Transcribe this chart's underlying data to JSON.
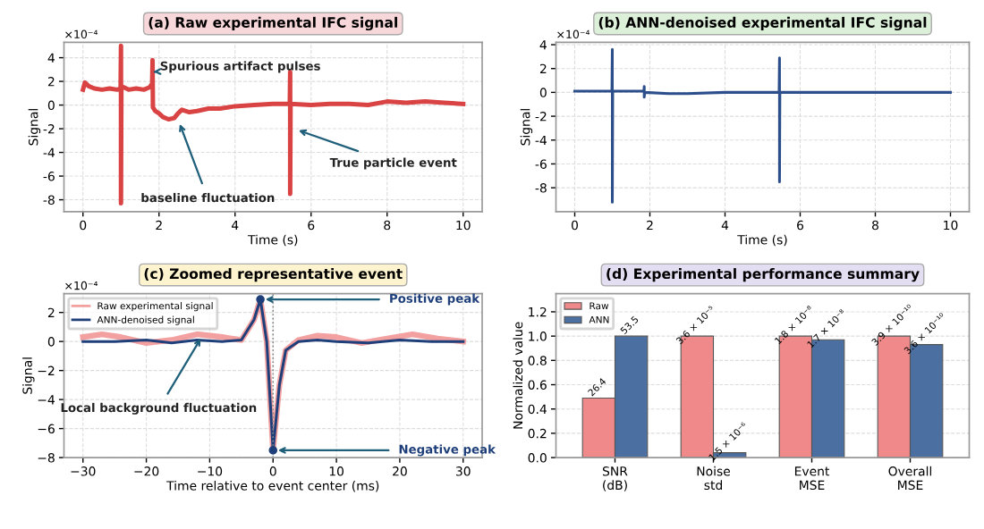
{
  "chart_data": [
    {
      "type": "line",
      "title": "(a) Raw experimental IFC signal",
      "xlabel": "Time (s)",
      "ylabel": "Signal",
      "series": [
        {
          "color": "#d94343",
          "x": [
            0,
            0.05,
            0.15,
            0.3,
            0.5,
            0.7,
            0.9,
            0.99,
            1.0,
            1.0,
            1.01,
            1.2,
            1.4,
            1.6,
            1.75,
            1.82,
            1.83,
            1.84,
            1.9,
            2.0,
            2.1,
            2.25,
            2.4,
            2.5,
            2.6,
            2.8,
            3.0,
            3.3,
            3.6,
            4.0,
            4.5,
            5.0,
            5.44,
            5.45,
            5.45,
            5.46,
            6.0,
            6.5,
            7.0,
            7.5,
            8.0,
            8.5,
            9.0,
            9.5,
            10.0
          ],
          "values": [
            1.3,
            1.9,
            1.6,
            1.4,
            1.3,
            1.4,
            1.3,
            1.4,
            5.0,
            -8.3,
            1.6,
            1.3,
            1.4,
            1.3,
            1.5,
            1.8,
            3.8,
            -0.2,
            -0.5,
            -0.7,
            -1.0,
            -1.2,
            -1.1,
            -0.7,
            -0.4,
            -0.6,
            -0.5,
            -0.3,
            -0.3,
            -0.1,
            0.0,
            0.1,
            0.1,
            2.8,
            -7.5,
            0.1,
            0.0,
            0.1,
            0.1,
            0.0,
            0.3,
            0.2,
            0.3,
            0.2,
            0.1
          ]
        }
      ],
      "xlim": [
        -0.5,
        10.5
      ],
      "xticks": [
        0,
        2,
        4,
        6,
        8,
        10
      ],
      "ylim": [
        -9,
        5.3
      ],
      "yticks": [
        -8,
        -6,
        -4,
        -2,
        0,
        2,
        4
      ],
      "grid": true,
      "annotations": [
        "×10⁻⁴",
        {
          "text": "Spurious artifact pulses",
          "x": 1.85,
          "y": 2.8
        },
        {
          "text": "baseline fluctuation",
          "x": 2.5,
          "y": -1.2
        },
        {
          "text": "True particle event",
          "x": 5.55,
          "y": -2
        }
      ]
    },
    {
      "type": "line",
      "title": "(b) ANN-denoised experimental IFC signal",
      "xlabel": "Time (s)",
      "ylabel": "Signal",
      "series": [
        {
          "color": "#2c4f8c",
          "x": [
            0,
            0.99,
            1.0,
            1.0,
            1.01,
            1.84,
            1.85,
            1.85,
            1.86,
            2.5,
            3.0,
            4.0,
            5.44,
            5.45,
            5.45,
            5.46,
            7.0,
            10.0
          ],
          "values": [
            0.1,
            0.1,
            3.6,
            -9.2,
            0.1,
            0.1,
            0.5,
            -0.4,
            0.0,
            -0.1,
            -0.1,
            0.0,
            0.0,
            2.9,
            -7.5,
            0.0,
            0.0,
            0.0
          ]
        }
      ],
      "xlim": [
        -0.5,
        10.5
      ],
      "xticks": [
        0,
        2,
        4,
        6,
        8,
        10
      ],
      "ylim": [
        -10,
        4.2
      ],
      "yticks": [
        -8,
        -6,
        -4,
        -2,
        0,
        2,
        4
      ],
      "grid": true,
      "annotations": [
        "×10⁻⁴"
      ]
    },
    {
      "type": "line",
      "title": "(c) Zoomed representative event",
      "xlabel": "Time relative to event center (ms)",
      "ylabel": "Signal",
      "series": [
        {
          "name": "Raw experimental signal",
          "color": "#f2a0a0",
          "x": [
            -30,
            -27,
            -24,
            -20,
            -16,
            -12,
            -8,
            -5,
            -3,
            -2,
            -1,
            0,
            1,
            2,
            4,
            7,
            10,
            14,
            18,
            22,
            26,
            30
          ],
          "values": [
            0.3,
            0.5,
            0.3,
            -0.1,
            0.1,
            0.5,
            0.3,
            0.1,
            1.5,
            2.9,
            0.0,
            -7.5,
            -3.0,
            -0.6,
            0.1,
            0.4,
            0.3,
            -0.1,
            0.2,
            0.5,
            0.2,
            0.0
          ]
        },
        {
          "name": "ANN-denoised signal",
          "color": "#1f3f7a",
          "x": [
            -30,
            -25,
            -20,
            -16,
            -12,
            -8,
            -5,
            -3,
            -2,
            -1,
            0,
            1,
            2,
            4,
            7,
            10,
            15,
            20,
            25,
            30
          ],
          "values": [
            0.0,
            0.0,
            0.1,
            -0.1,
            0.1,
            0.0,
            0.1,
            1.5,
            2.9,
            0.0,
            -7.5,
            -3.0,
            -0.6,
            0.0,
            0.1,
            0.0,
            -0.1,
            0.1,
            0.0,
            0.0
          ]
        },
        {
          "type": "scatter",
          "color": "#1f3f7a",
          "x": [
            -2,
            0
          ],
          "values": [
            2.9,
            -7.5
          ]
        }
      ],
      "xlim": [
        -33,
        33
      ],
      "xticks": [
        {
          "value": -30,
          "label": "−30"
        },
        {
          "value": -20,
          "label": "−20"
        },
        {
          "value": -10,
          "label": "−10"
        },
        0,
        10,
        20,
        30
      ],
      "ylim": [
        -8,
        3.3
      ],
      "yticks": [
        {
          "value": -8,
          "label": "−8"
        },
        {
          "value": -6,
          "label": "−6"
        },
        {
          "value": -4,
          "label": "−4"
        },
        {
          "value": -2,
          "label": "−2"
        },
        0,
        2
      ],
      "grid": true,
      "legend": "top left",
      "ref_lines": [
        {
          "axis": "x",
          "value": 0,
          "color": "#888888",
          "line_style": "dotted"
        }
      ],
      "annotations": [
        "×10⁻⁴",
        {
          "text": "Positive peak",
          "x": -2,
          "y": 2.9
        },
        {
          "text": "Negative peak",
          "x": 0,
          "y": -7.5
        },
        {
          "text": "Local background fluctuation",
          "x": -11,
          "y": 0.5
        }
      ]
    },
    {
      "type": "bar",
      "title": "(d) Experimental performance summary",
      "ylabel": "Normalized value",
      "categories": [
        "SNR\n(dB)",
        "Noise\nstd",
        "Event\nMSE",
        "Overall\nMSE"
      ],
      "series": [
        {
          "name": "Raw",
          "color": "#f08a8a",
          "values": [
            0.49,
            1.0,
            1.0,
            1.0
          ]
        },
        {
          "name": "ANN",
          "color": "#4a6fa0",
          "values": [
            1.0,
            0.04,
            0.97,
            0.93
          ]
        }
      ],
      "annotations": [
        {
          "text": "26.4",
          "x": "SNR\n(dB)",
          "y": 0.49
        },
        {
          "text": "53.5",
          "x": "SNR\n(dB)",
          "y": 1.0
        },
        {
          "text": "3.6 × 10⁻⁵",
          "x": "Noise\nstd",
          "y": 1.0
        },
        {
          "text": "1.5 × 10⁻⁶",
          "x": "Noise\nstd",
          "y": 0.04
        },
        {
          "text": "1.8 × 10⁻⁸",
          "x": "Event\nMSE",
          "y": 1.0
        },
        {
          "text": "1.7 × 10⁻⁸",
          "x": "Event\nMSE",
          "y": 0.97
        },
        {
          "text": "3.9 × 10⁻¹⁰",
          "x": "Overall\nMSE",
          "y": 1.0
        },
        {
          "text": "3.6 × 10⁻¹⁰",
          "x": "Overall\nMSE",
          "y": 0.93
        }
      ],
      "ylim": [
        0,
        1.35
      ],
      "yticks": [
        {
          "value": 0,
          "label": "0.0"
        },
        {
          "value": 0.2,
          "label": "0.2"
        },
        {
          "value": 0.4,
          "label": "0.4"
        },
        {
          "value": 0.6,
          "label": "0.6"
        },
        {
          "value": 0.8,
          "label": "0.8"
        },
        {
          "value": 1.0,
          "label": "1.0"
        },
        {
          "value": 1.2,
          "label": "1.2"
        }
      ],
      "grid": "y",
      "legend": "top left"
    }
  ]
}
